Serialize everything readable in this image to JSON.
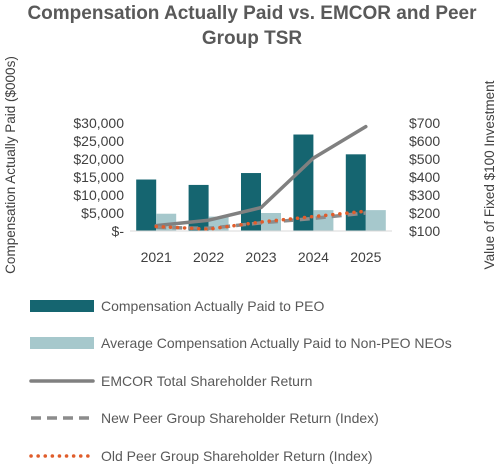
{
  "chart_data": {
    "type": "bar",
    "title": "Compensation Actually Paid vs. EMCOR and Peer Group TSR",
    "title_lines": [
      "Compensation Actually Paid vs. EMCOR and Peer",
      "Group TSR"
    ],
    "ylabel_left": "Compensation Actually Paid ($000s)",
    "ylabel_right": "Value of Fixed $100 Investment",
    "categories": [
      "2021",
      "2022",
      "2023",
      "2024",
      "2025"
    ],
    "ylim_left": [
      0,
      30000
    ],
    "ylim_right": [
      100,
      700
    ],
    "left_ticks": [
      "$-",
      "$5,000",
      "$10,000",
      "$15,000",
      "$20,000",
      "$25,000",
      "$30,000"
    ],
    "right_ticks": [
      "$100",
      "$200",
      "$300",
      "$400",
      "$500",
      "$600",
      "$700"
    ],
    "grid": false,
    "legend_position": "bottom",
    "series": [
      {
        "name": "Compensation Actually Paid to PEO",
        "kind": "bar",
        "axis": "left",
        "color": "#156570",
        "values": [
          14300,
          12800,
          16100,
          26800,
          21300
        ]
      },
      {
        "name": "Average Compensation Actually Paid to Non-PEO NEOs",
        "kind": "bar",
        "axis": "left",
        "color": "#a6c8cc",
        "values": [
          4800,
          4000,
          5000,
          5800,
          5800
        ]
      },
      {
        "name": "EMCOR Total Shareholder Return",
        "kind": "line",
        "style": "solid",
        "axis": "right",
        "color": "#808080",
        "values": [
          130,
          160,
          230,
          505,
          680
        ]
      },
      {
        "name": "New Peer Group Shareholder Return (Index)",
        "kind": "line",
        "style": "dashed",
        "axis": "right",
        "color": "#8c8c8c",
        "values": [
          120,
          115,
          145,
          170,
          200
        ]
      },
      {
        "name": "Old Peer Group Shareholder Return (Index)",
        "kind": "line",
        "style": "dotted",
        "axis": "right",
        "color": "#e05d2b",
        "values": [
          125,
          110,
          150,
          180,
          210
        ]
      }
    ]
  }
}
